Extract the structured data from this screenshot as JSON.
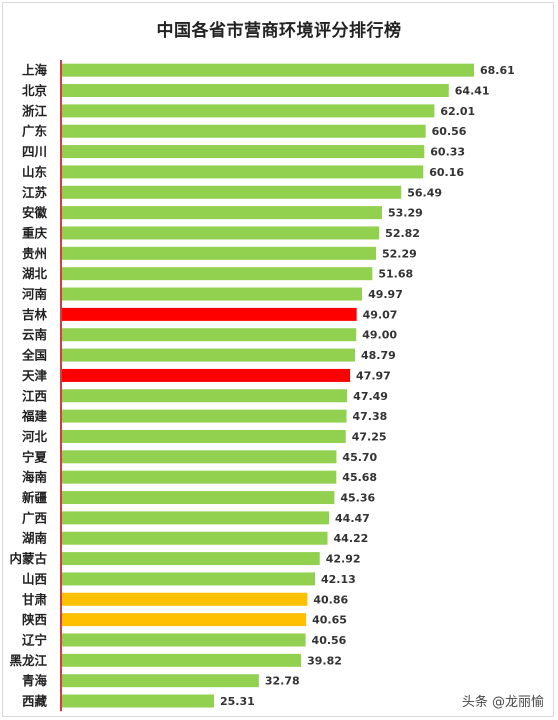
{
  "watermark": "头条 @龙丽愉",
  "chart_data": {
    "type": "bar",
    "orientation": "horizontal",
    "title": "中国各省市营商环境评分排行榜",
    "xlabel": "",
    "ylabel": "",
    "xlim": [
      0,
      68.61
    ],
    "grid": false,
    "legend": "none",
    "colors": {
      "default": "#92d050",
      "red": "#ff0000",
      "yellow": "#ffc000",
      "axis": "#c00000"
    },
    "categories": [
      "上海",
      "北京",
      "浙江",
      "广东",
      "四川",
      "山东",
      "江苏",
      "安徽",
      "重庆",
      "贵州",
      "湖北",
      "河南",
      "吉林",
      "云南",
      "全国",
      "天津",
      "江西",
      "福建",
      "河北",
      "宁夏",
      "海南",
      "新疆",
      "广西",
      "湖南",
      "内蒙古",
      "山西",
      "甘肃",
      "陕西",
      "辽宁",
      "黑龙江",
      "青海",
      "西藏"
    ],
    "values": [
      68.61,
      64.41,
      62.01,
      60.56,
      60.33,
      60.16,
      56.49,
      53.29,
      52.82,
      52.29,
      51.68,
      49.97,
      49.07,
      49.0,
      48.79,
      47.97,
      47.49,
      47.38,
      47.25,
      45.7,
      45.68,
      45.36,
      44.47,
      44.22,
      42.92,
      42.13,
      40.86,
      40.65,
      40.56,
      39.82,
      32.78,
      25.31
    ],
    "labels": [
      "68.61",
      "64.41",
      "62.01",
      "60.56",
      "60.33",
      "60.16",
      "56.49",
      "53.29",
      "52.82",
      "52.29",
      "51.68",
      "49.97",
      "49.07",
      "49.00",
      "48.79",
      "47.97",
      "47.49",
      "47.38",
      "47.25",
      "45.70",
      "45.68",
      "45.36",
      "44.47",
      "44.22",
      "42.92",
      "42.13",
      "40.86",
      "40.65",
      "40.56",
      "39.82",
      "32.78",
      "25.31"
    ],
    "bar_colors": [
      "default",
      "default",
      "default",
      "default",
      "default",
      "default",
      "default",
      "default",
      "default",
      "default",
      "default",
      "default",
      "red",
      "default",
      "default",
      "red",
      "default",
      "default",
      "default",
      "default",
      "default",
      "default",
      "default",
      "default",
      "default",
      "default",
      "yellow",
      "yellow",
      "default",
      "default",
      "default",
      "default"
    ]
  }
}
